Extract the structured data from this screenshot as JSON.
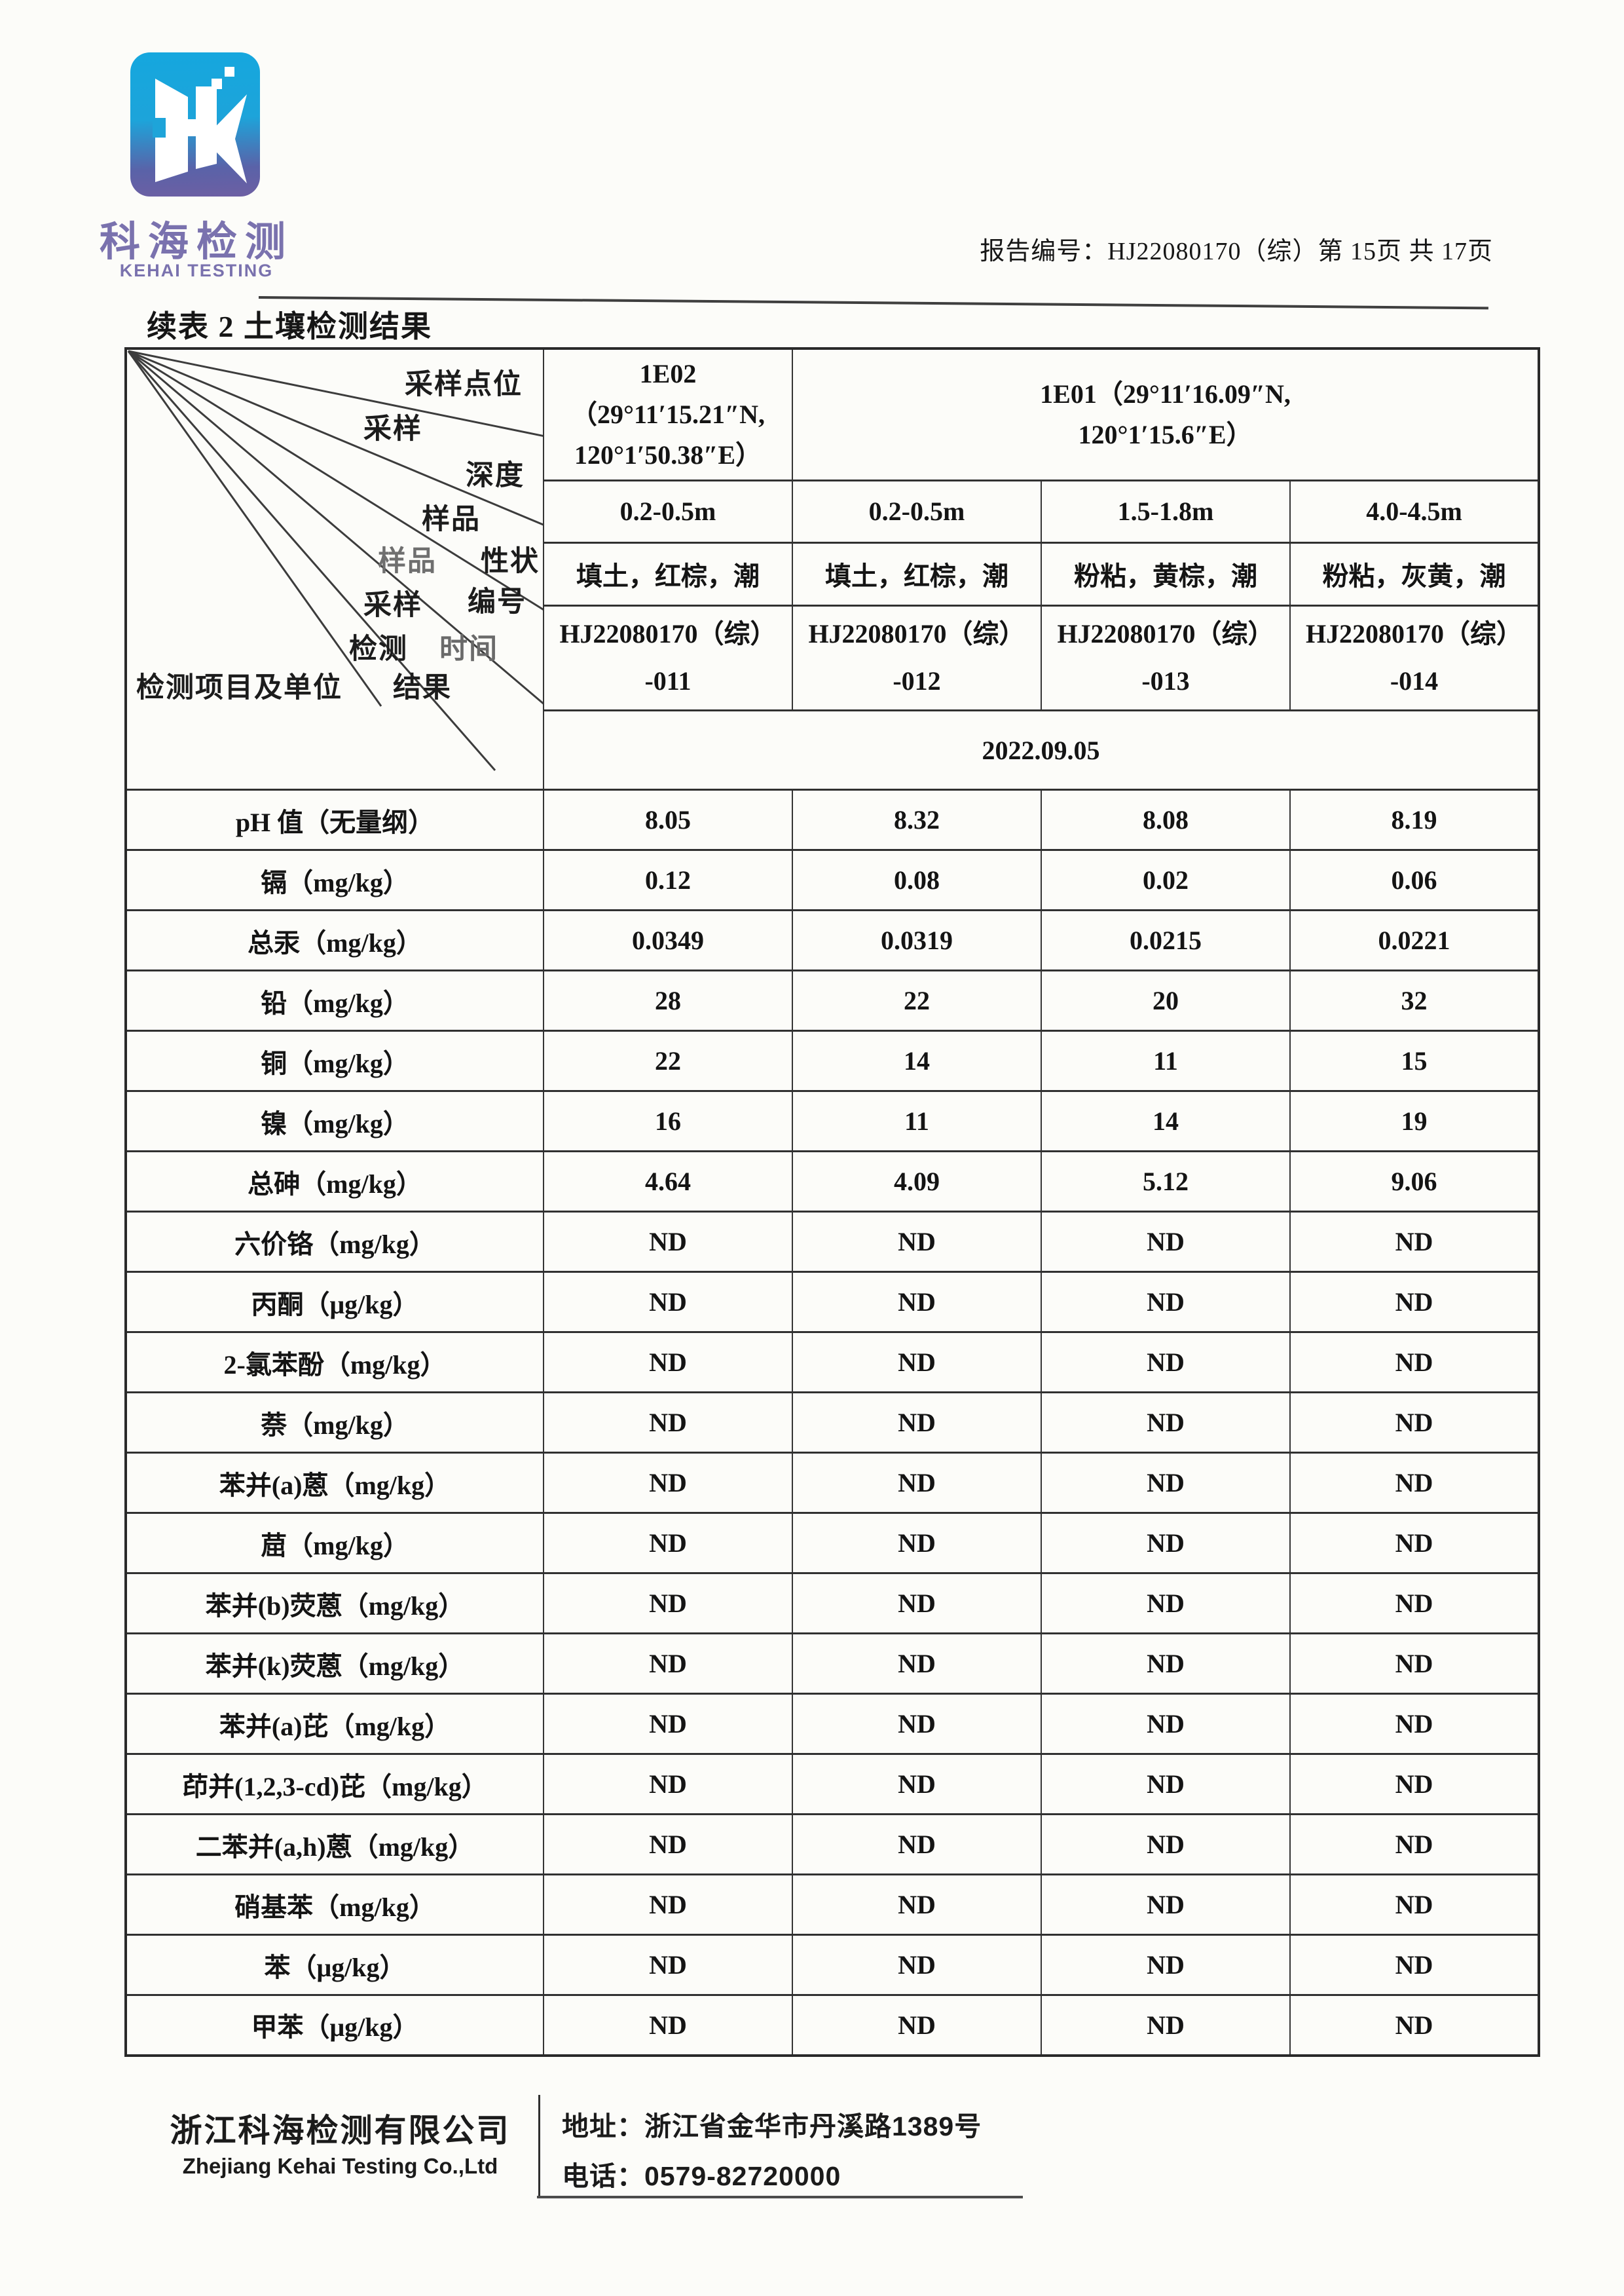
{
  "page": {
    "report_label": "报告编号：HJ22080170（综）第 15页 共 17页",
    "title": "续表 2 土壤检测结果"
  },
  "logo": {
    "zh": "科海检测",
    "en": "KEHAI TESTING"
  },
  "table": {
    "corner": {
      "band1": "采样点位",
      "band2a": "采样",
      "band2b": "深度",
      "band3a": "样品",
      "band3b": "性状",
      "band4a": "样品",
      "band4b": "编号",
      "band5a": "采样",
      "band5b": "时间",
      "band6a": "检测",
      "band6b": "结果",
      "items_label": "检测项目及单位"
    },
    "point1_lines": [
      "1E02",
      "（29°11′15.21″N,",
      "120°1′50.38″E）"
    ],
    "point2_lines": [
      "1E01（29°11′16.09″N,",
      "120°1′15.6″E）"
    ],
    "depths": [
      "0.2-0.5m",
      "0.2-0.5m",
      "1.5-1.8m",
      "4.0-4.5m"
    ],
    "characters": [
      "填土，红棕，潮",
      "填土，红棕，潮",
      "粉粘，黄棕，潮",
      "粉粘，灰黄，潮"
    ],
    "sample_ids": [
      {
        "l1": "HJ22080170（综）",
        "l2": "-011"
      },
      {
        "l1": "HJ22080170（综）",
        "l2": "-012"
      },
      {
        "l1": "HJ22080170（综）",
        "l2": "-013"
      },
      {
        "l1": "HJ22080170（综）",
        "l2": "-014"
      }
    ],
    "test_date": "2022.09.05",
    "rows": [
      {
        "item": "pH 值（无量纲）",
        "values": [
          "8.05",
          "8.32",
          "8.08",
          "8.19"
        ]
      },
      {
        "item": "镉（mg/kg）",
        "values": [
          "0.12",
          "0.08",
          "0.02",
          "0.06"
        ]
      },
      {
        "item": "总汞（mg/kg）",
        "values": [
          "0.0349",
          "0.0319",
          "0.0215",
          "0.0221"
        ]
      },
      {
        "item": "铅（mg/kg）",
        "values": [
          "28",
          "22",
          "20",
          "32"
        ]
      },
      {
        "item": "铜（mg/kg）",
        "values": [
          "22",
          "14",
          "11",
          "15"
        ]
      },
      {
        "item": "镍（mg/kg）",
        "values": [
          "16",
          "11",
          "14",
          "19"
        ]
      },
      {
        "item": "总砷（mg/kg）",
        "values": [
          "4.64",
          "4.09",
          "5.12",
          "9.06"
        ]
      },
      {
        "item": "六价铬（mg/kg）",
        "values": [
          "ND",
          "ND",
          "ND",
          "ND"
        ]
      },
      {
        "item": "丙酮（μg/kg）",
        "values": [
          "ND",
          "ND",
          "ND",
          "ND"
        ]
      },
      {
        "item": "2-氯苯酚（mg/kg）",
        "values": [
          "ND",
          "ND",
          "ND",
          "ND"
        ]
      },
      {
        "item": "萘（mg/kg）",
        "values": [
          "ND",
          "ND",
          "ND",
          "ND"
        ]
      },
      {
        "item": "苯并(a)蒽（mg/kg）",
        "values": [
          "ND",
          "ND",
          "ND",
          "ND"
        ]
      },
      {
        "item": "䓛（mg/kg）",
        "values": [
          "ND",
          "ND",
          "ND",
          "ND"
        ]
      },
      {
        "item": "苯并(b)荧蒽（mg/kg）",
        "values": [
          "ND",
          "ND",
          "ND",
          "ND"
        ]
      },
      {
        "item": "苯并(k)荧蒽（mg/kg）",
        "values": [
          "ND",
          "ND",
          "ND",
          "ND"
        ]
      },
      {
        "item": "苯并(a)芘（mg/kg）",
        "values": [
          "ND",
          "ND",
          "ND",
          "ND"
        ]
      },
      {
        "item": "茚并(1,2,3-cd)芘（mg/kg）",
        "values": [
          "ND",
          "ND",
          "ND",
          "ND"
        ]
      },
      {
        "item": "二苯并(a,h)蒽（mg/kg）",
        "values": [
          "ND",
          "ND",
          "ND",
          "ND"
        ]
      },
      {
        "item": "硝基苯（mg/kg）",
        "values": [
          "ND",
          "ND",
          "ND",
          "ND"
        ]
      },
      {
        "item": "苯（μg/kg）",
        "values": [
          "ND",
          "ND",
          "ND",
          "ND"
        ]
      },
      {
        "item": "甲苯（μg/kg）",
        "values": [
          "ND",
          "ND",
          "ND",
          "ND"
        ]
      }
    ]
  },
  "footer": {
    "company_zh": "浙江科海检测有限公司",
    "company_en": "Zhejiang Kehai Testing Co.,Ltd",
    "address": "地址：浙江省金华市丹溪路1389号",
    "phone": "电话：0579-82720000"
  },
  "colors": {
    "logo_blue": "#15a7de",
    "logo_purple": "#6d5fa3",
    "brand_text": "#7a72ae",
    "ink": "#161616",
    "table_line": "#313131"
  }
}
